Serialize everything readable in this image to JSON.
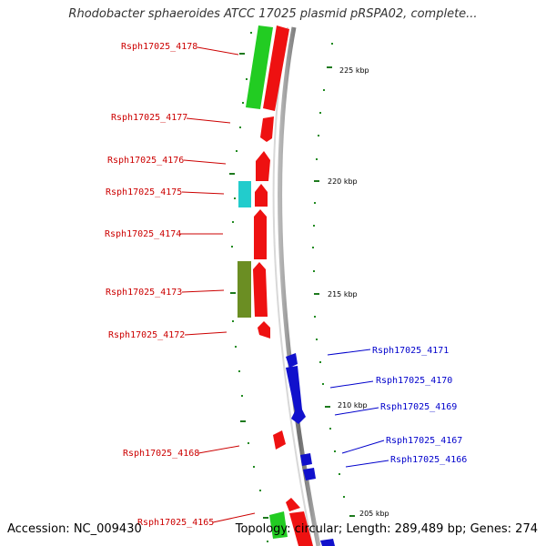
{
  "title": "Rhodobacter sphaeroides ATCC 17025 plasmid pRSPA02, complete...",
  "footer": {
    "accession": "Accession: NC_009430",
    "stats": "Topology: circular; Length: 289,489 bp; Genes: 274"
  },
  "ticks": [
    "225 kbp",
    "220 kbp",
    "215 kbp",
    "210 kbp",
    "205 kbp"
  ],
  "genes_left": [
    "Rsph17025_4178",
    "Rsph17025_4177",
    "Rsph17025_4176",
    "Rsph17025_4175",
    "Rsph17025_4174",
    "Rsph17025_4173",
    "Rsph17025_4172",
    "Rsph17025_4168",
    "Rsph17025_4165"
  ],
  "genes_right": [
    "Rsph17025_4171",
    "Rsph17025_4170",
    "Rsph17025_4169",
    "Rsph17025_4167",
    "Rsph17025_4166"
  ],
  "colors": {
    "forward_cds": "#ee1111",
    "reverse_cds": "#1111cc",
    "forward_label": "#cc0000",
    "reverse_label": "#0000cc",
    "green_feature": "#22cc22",
    "cyan_feature": "#22cccc",
    "olive_feature": "#6b8e23",
    "backbone": "#999999",
    "dots": "#228b22"
  }
}
